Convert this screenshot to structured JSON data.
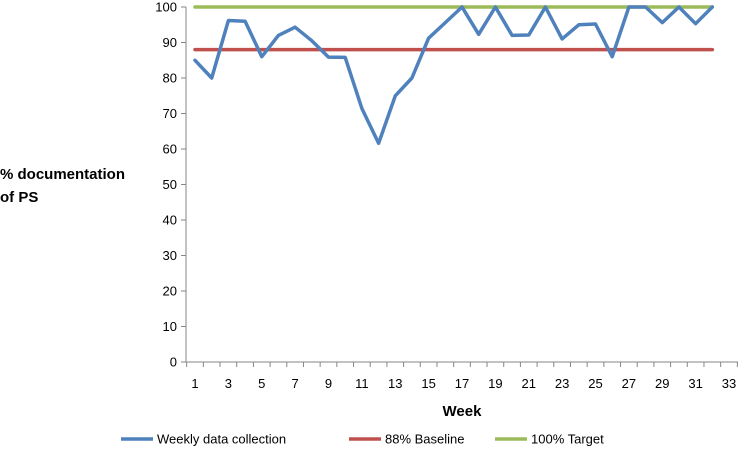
{
  "chart_data": {
    "type": "line",
    "title": "",
    "xlabel": "Week",
    "ylabel_lines": [
      "% documentation",
      "of PS"
    ],
    "xlim": [
      1,
      33
    ],
    "ylim": [
      0,
      100
    ],
    "x_ticks": [
      1,
      2,
      3,
      4,
      5,
      6,
      7,
      8,
      9,
      10,
      11,
      12,
      13,
      14,
      15,
      16,
      17,
      18,
      19,
      20,
      21,
      22,
      23,
      24,
      25,
      26,
      27,
      28,
      29,
      30,
      31,
      32,
      33
    ],
    "x_tick_labels": [
      "1",
      "3",
      "5",
      "7",
      "9",
      "11",
      "13",
      "15",
      "17",
      "19",
      "21",
      "23",
      "25",
      "27",
      "29",
      "31",
      "33"
    ],
    "y_ticks": [
      0,
      10,
      20,
      30,
      40,
      50,
      60,
      70,
      80,
      90,
      100
    ],
    "y_tick_labels": [
      "0",
      "10",
      "20",
      "30",
      "40",
      "50",
      "60",
      "70",
      "80",
      "90",
      "100"
    ],
    "grid": false,
    "legend_position": "bottom",
    "x": [
      1,
      2,
      3,
      4,
      5,
      6,
      7,
      8,
      9,
      10,
      11,
      12,
      13,
      14,
      15,
      16,
      17,
      18,
      19,
      20,
      21,
      22,
      23,
      24,
      25,
      26,
      27,
      28,
      29,
      30,
      31,
      32
    ],
    "series": [
      {
        "name": "Weekly data collection",
        "color": "#4F81BD",
        "values": [
          85,
          80,
          96.2,
          96,
          86,
          92,
          94.3,
          90.5,
          85.9,
          85.8,
          71.4,
          61.6,
          75,
          80,
          91.2,
          95.6,
          100,
          92.3,
          100,
          92,
          92.1,
          100,
          91,
          95,
          95.2,
          86,
          100,
          100,
          95.6,
          100,
          95.3,
          100
        ]
      },
      {
        "name": "88% Baseline",
        "color": "#C0504D",
        "values": [
          88,
          88,
          88,
          88,
          88,
          88,
          88,
          88,
          88,
          88,
          88,
          88,
          88,
          88,
          88,
          88,
          88,
          88,
          88,
          88,
          88,
          88,
          88,
          88,
          88,
          88,
          88,
          88,
          88,
          88,
          88,
          88
        ]
      },
      {
        "name": "100% Target",
        "color": "#9BBB59",
        "values": [
          100,
          100,
          100,
          100,
          100,
          100,
          100,
          100,
          100,
          100,
          100,
          100,
          100,
          100,
          100,
          100,
          100,
          100,
          100,
          100,
          100,
          100,
          100,
          100,
          100,
          100,
          100,
          100,
          100,
          100,
          100,
          100
        ]
      }
    ]
  }
}
